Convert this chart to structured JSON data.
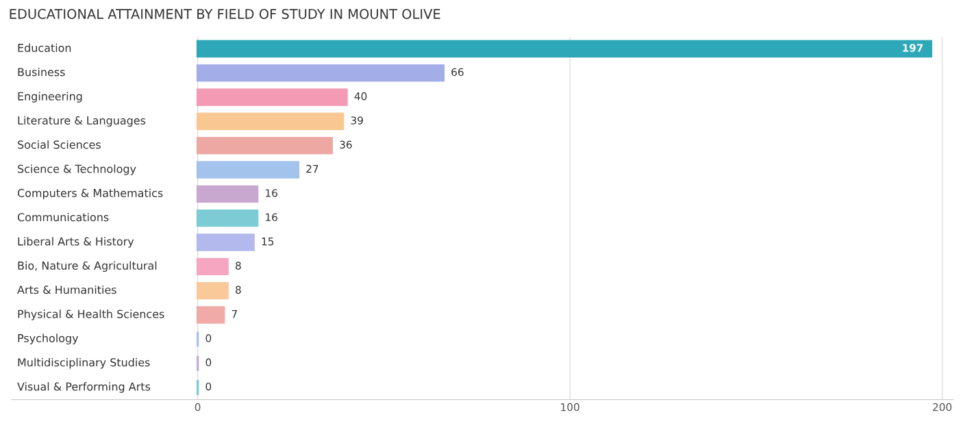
{
  "chart_data": {
    "type": "bar",
    "orientation": "horizontal",
    "title": "EDUCATIONAL ATTAINMENT BY FIELD OF STUDY IN MOUNT OLIVE",
    "categories": [
      "Education",
      "Business",
      "Engineering",
      "Literature & Languages",
      "Social Sciences",
      "Science & Technology",
      "Computers & Mathematics",
      "Communications",
      "Liberal Arts & History",
      "Bio, Nature & Agricultural",
      "Arts & Humanities",
      "Physical & Health Sciences",
      "Psychology",
      "Multidisciplinary Studies",
      "Visual & Performing Arts"
    ],
    "values": [
      197,
      66,
      40,
      39,
      36,
      27,
      16,
      16,
      15,
      8,
      8,
      7,
      0,
      0,
      0
    ],
    "colors": [
      "#2ea7b8",
      "#a3aee8",
      "#f49ab5",
      "#f9c892",
      "#eea8a3",
      "#a4c3ec",
      "#c9a8d0",
      "#7ccbd5",
      "#b3b9ec",
      "#f6a6c0",
      "#f9c99a",
      "#f0aaa8",
      "#a7c5ec",
      "#c9aed6",
      "#7ecdd6"
    ],
    "xlim": [
      -50,
      203
    ],
    "xticks": [
      0,
      100,
      200
    ],
    "grid": "x",
    "data_labels": true
  }
}
